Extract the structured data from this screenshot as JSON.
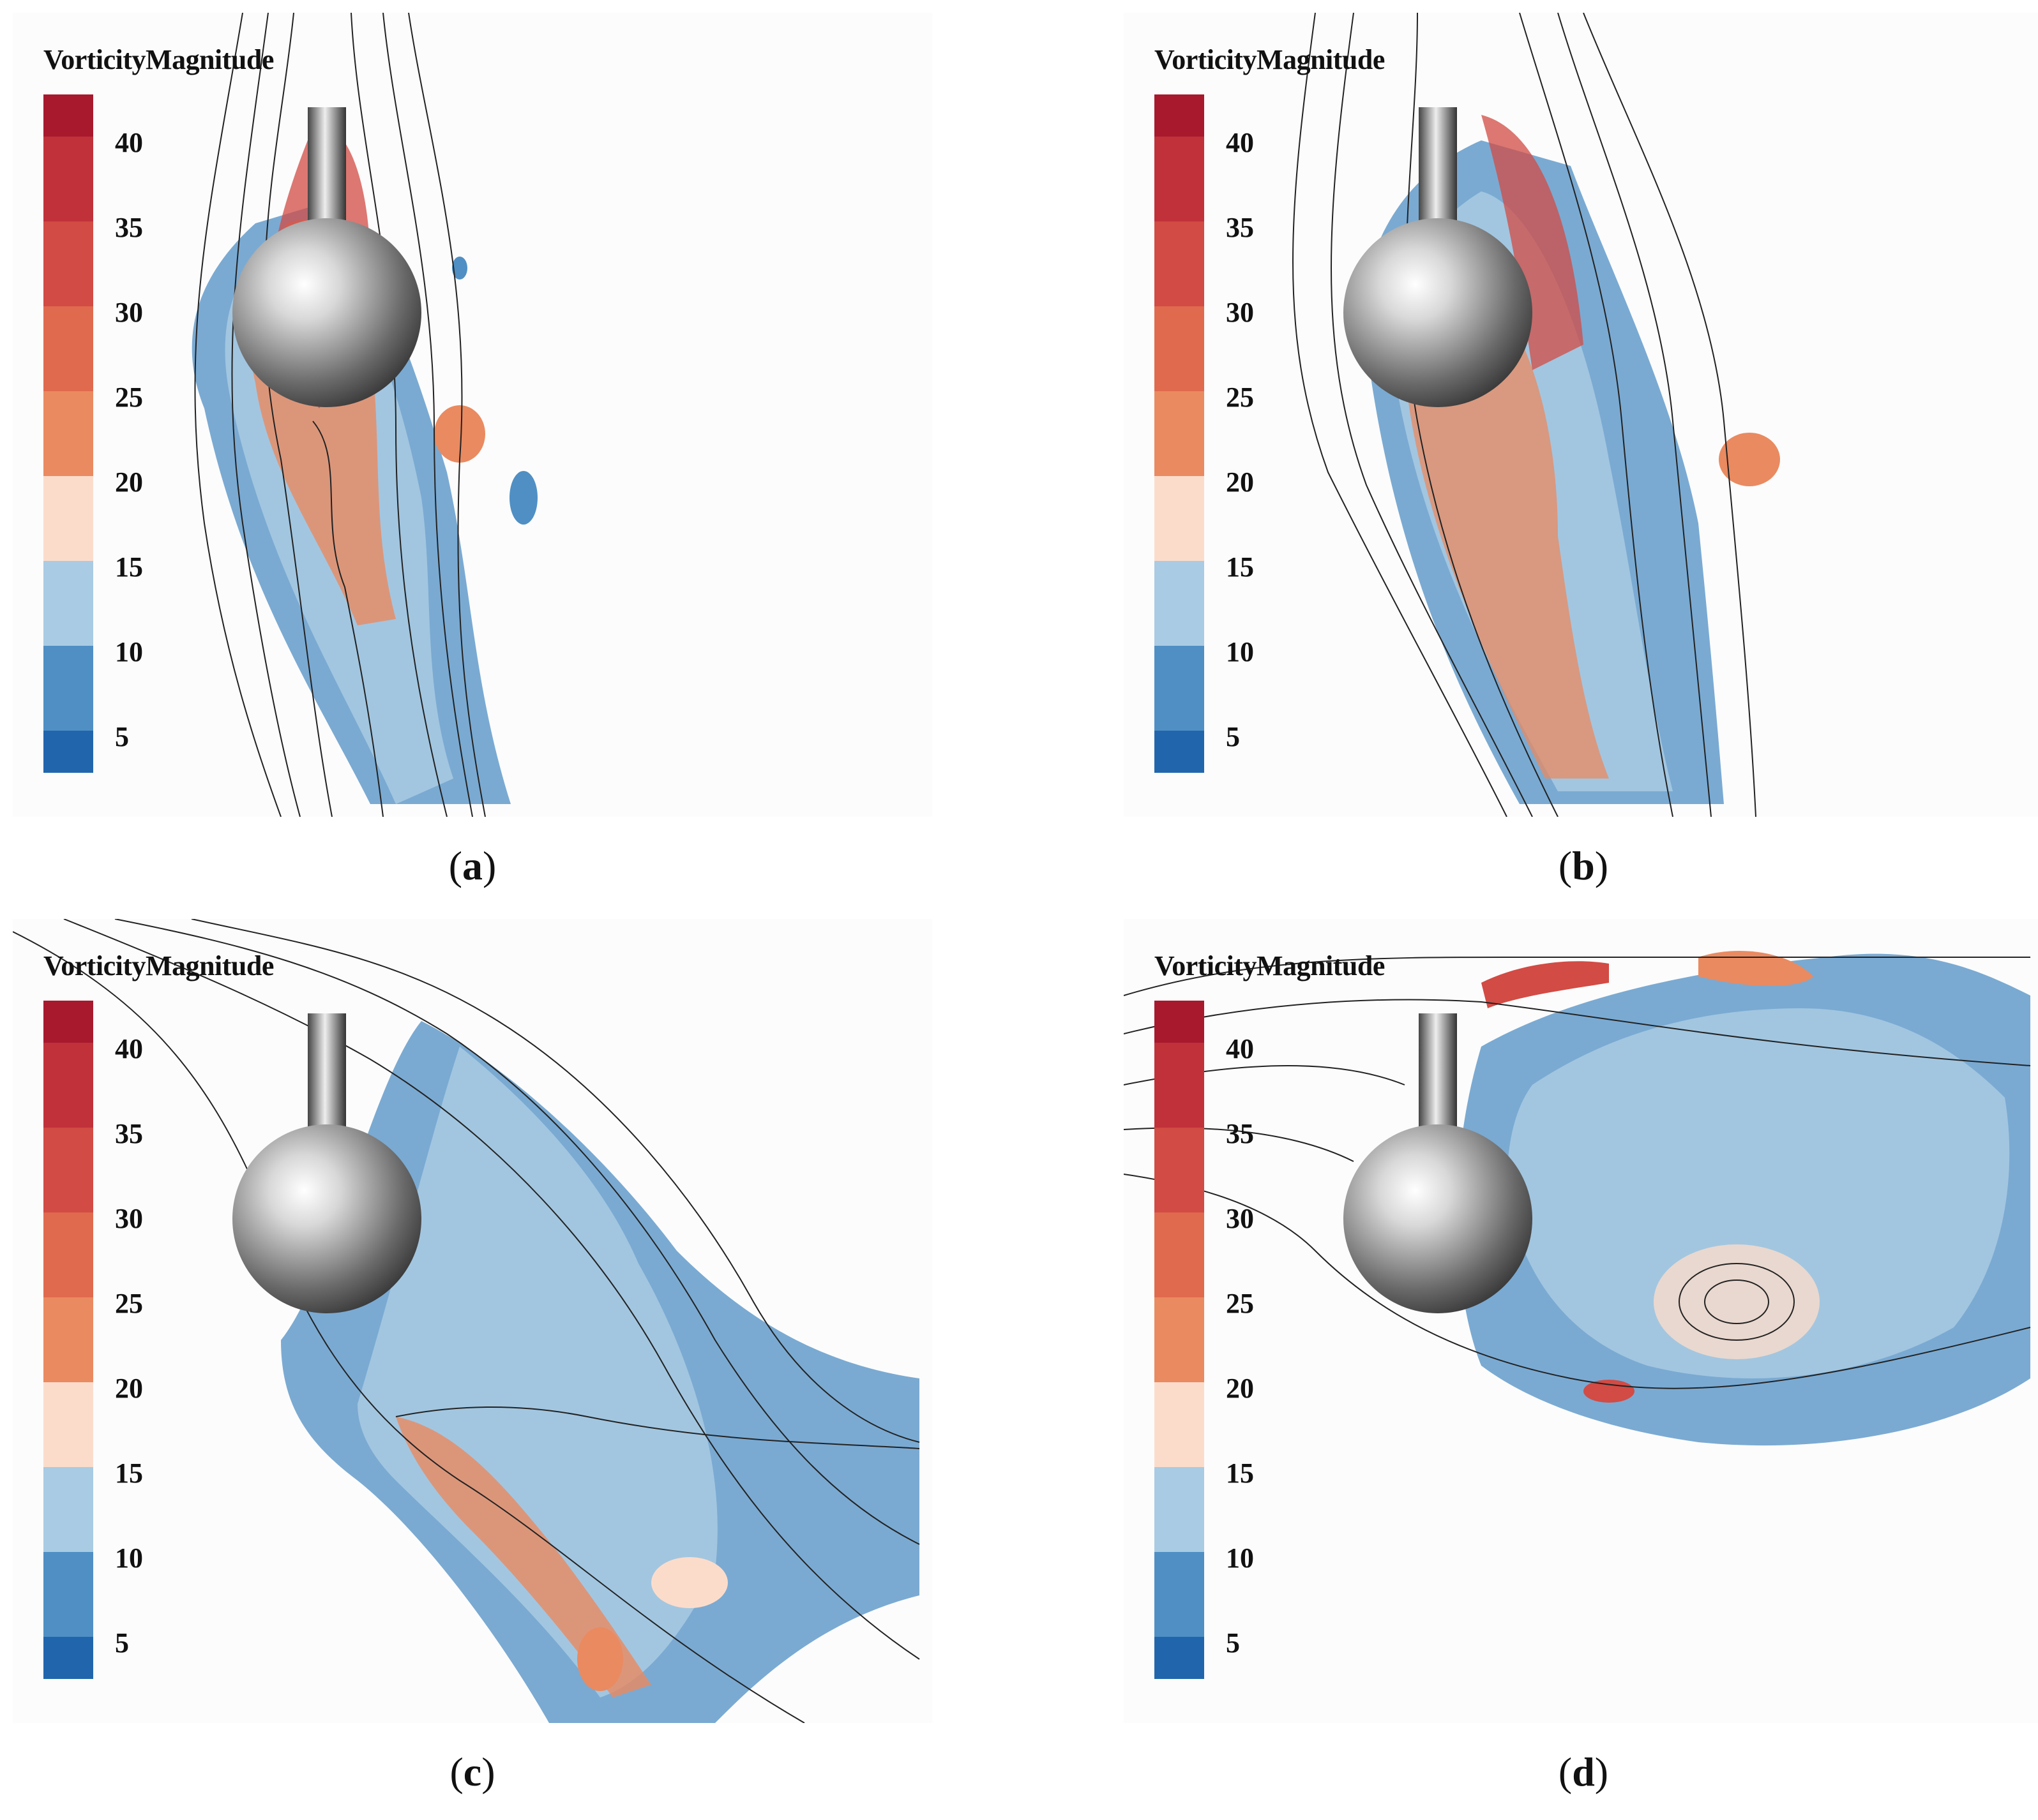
{
  "colorbar": {
    "title": "VorticityMagnitude",
    "ticks": [
      "40",
      "35",
      "30",
      "25",
      "20",
      "15",
      "10",
      "5"
    ],
    "colors": [
      "#a8192e",
      "#c0313a",
      "#d24b44",
      "#e06a4e",
      "#ea8a60",
      "#fbdccb",
      "#a9cbe3",
      "#4f8fc4",
      "#2166ac"
    ]
  },
  "panels": [
    {
      "id": "a",
      "caption_open": "(",
      "caption_letter": "a",
      "caption_close": ")"
    },
    {
      "id": "b",
      "caption_open": "(",
      "caption_letter": "b",
      "caption_close": ")"
    },
    {
      "id": "c",
      "caption_open": "(",
      "caption_letter": "c",
      "caption_close": ")"
    },
    {
      "id": "d",
      "caption_open": "(",
      "caption_letter": "d",
      "caption_close": ")"
    }
  ],
  "icons": [
    "sphere-with-stem-icon",
    "streamline-icon"
  ]
}
